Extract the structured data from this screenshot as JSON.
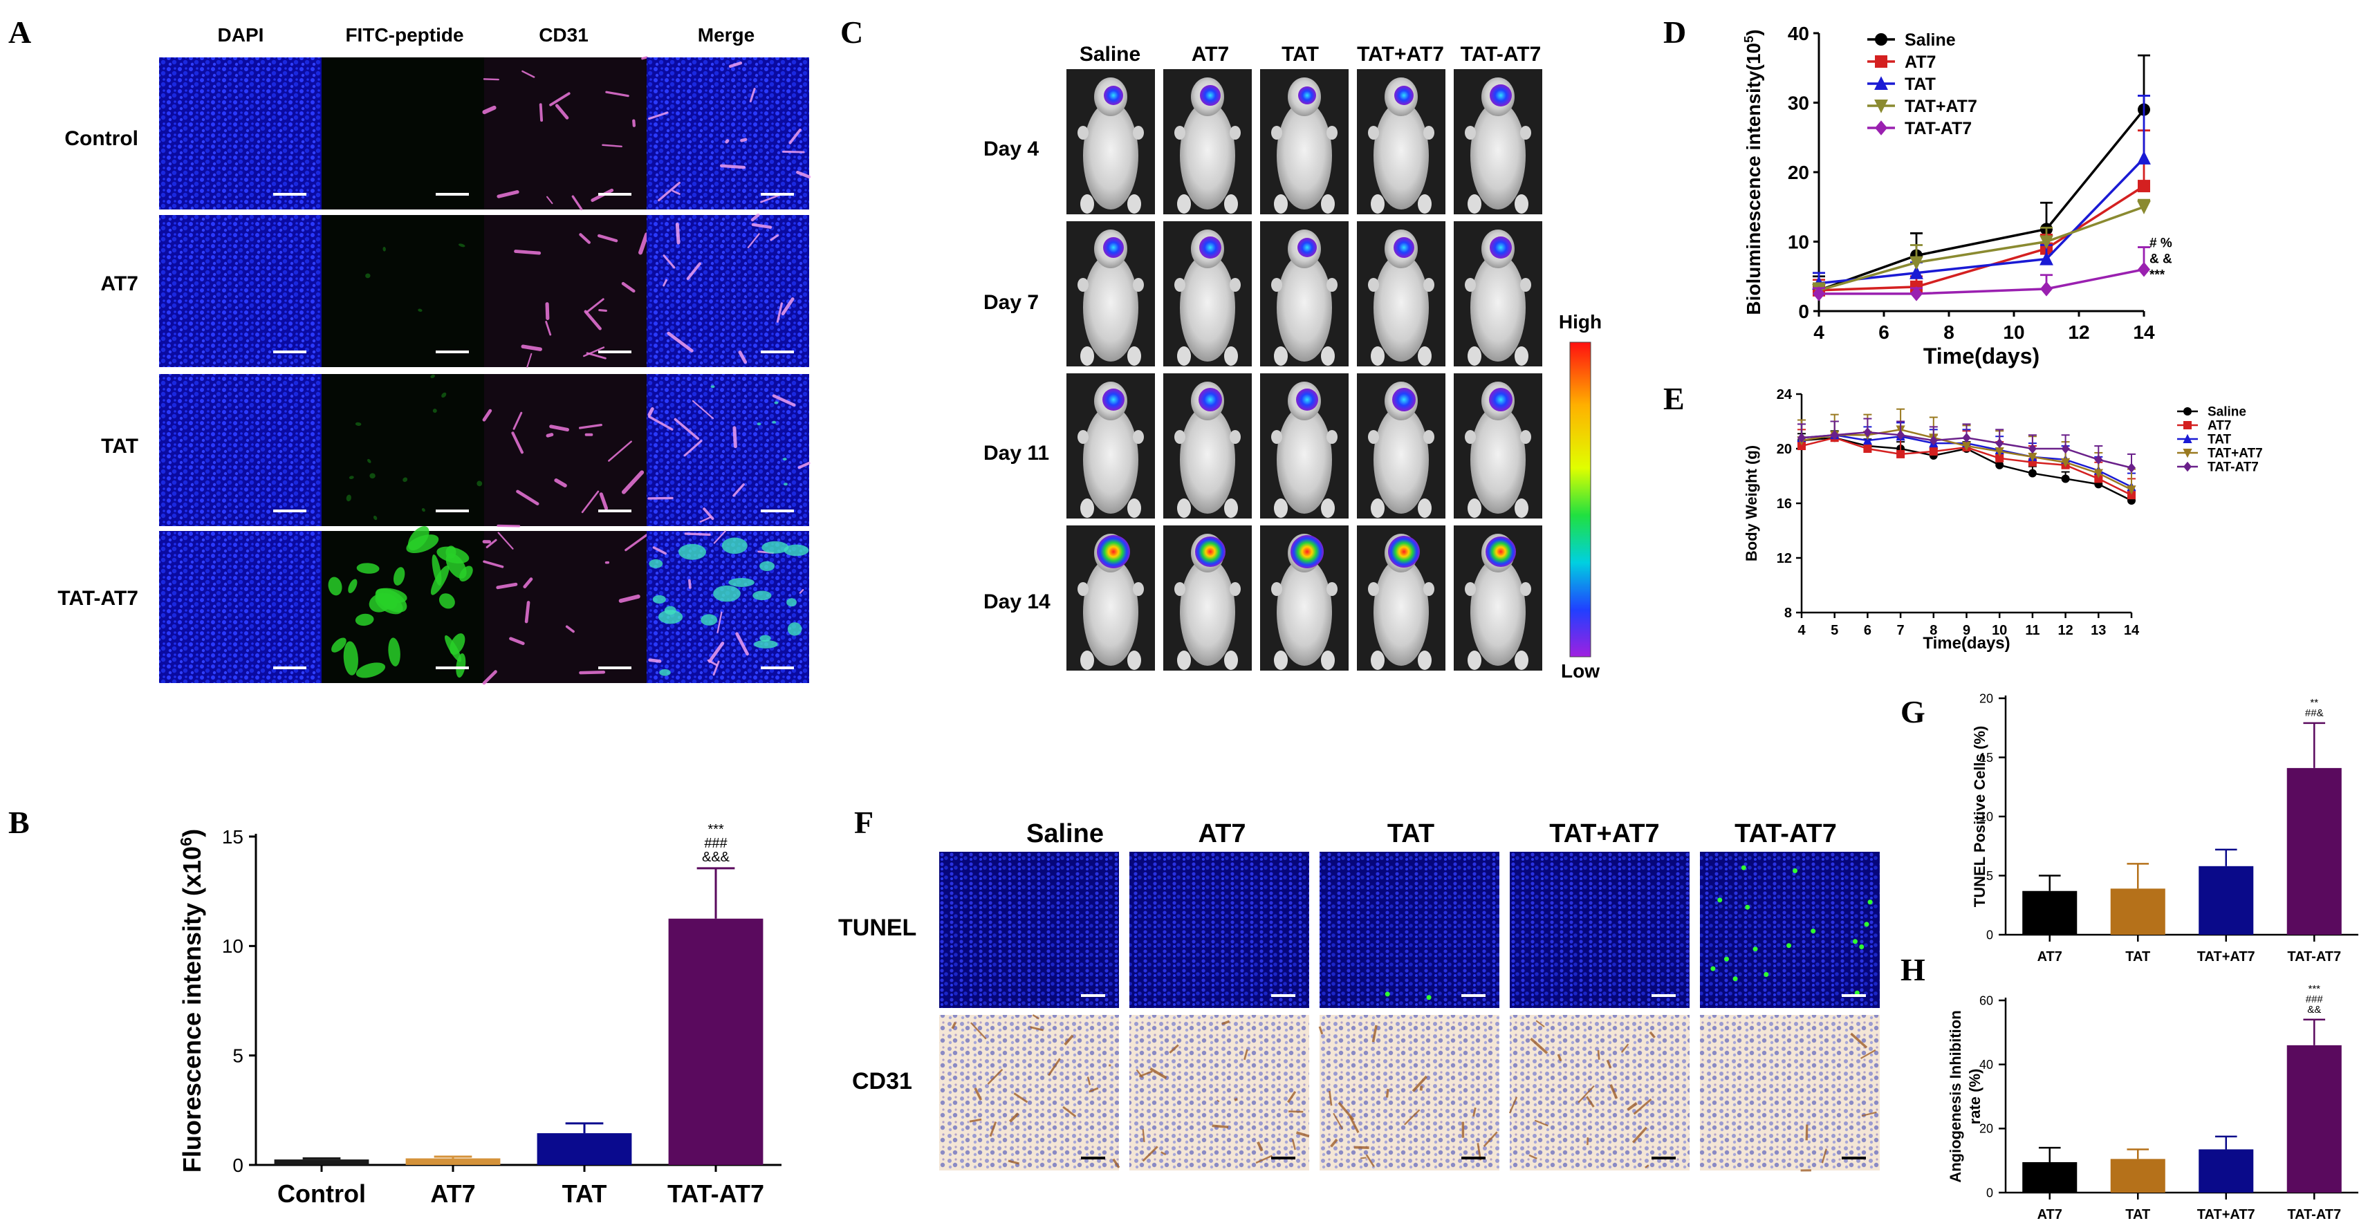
{
  "panel_letters": [
    "A",
    "B",
    "C",
    "D",
    "E",
    "F",
    "G",
    "H"
  ],
  "panel_a": {
    "col_headers": [
      "DAPI",
      "FITC-peptide",
      "CD31",
      "Merge"
    ],
    "row_labels": [
      "Control",
      "AT7",
      "TAT",
      "TAT-AT7"
    ]
  },
  "panel_c": {
    "col_headers": [
      "Saline",
      "AT7",
      "TAT",
      "TAT+AT7",
      "TAT-AT7"
    ],
    "row_labels": [
      "Day  4",
      "Day  7",
      "Day 11",
      "Day 14"
    ],
    "colorbar_high": "High",
    "colorbar_low": "Low"
  },
  "panel_f": {
    "col_headers": [
      "Saline",
      "AT7",
      "TAT",
      "TAT+AT7",
      "TAT-AT7"
    ],
    "row_labels": [
      "TUNEL",
      "CD31"
    ]
  },
  "chart_data": [
    {
      "id": "B",
      "type": "bar",
      "categories": [
        "Control",
        "AT7",
        "TAT",
        "TAT-AT7"
      ],
      "values": [
        0.25,
        0.3,
        1.45,
        11.25
      ],
      "errors": [
        0.05,
        0.08,
        0.45,
        2.3
      ],
      "colors": [
        "#1a1a1a",
        "#d4923a",
        "#0a0a8e",
        "#5a0a5e"
      ],
      "ylabel_main": "Fluorescence intensity (x10",
      "ylabel_sup": "6",
      "ylabel_end": ")",
      "ylim": [
        0,
        15
      ],
      "yticks": [
        "0",
        "5",
        "10",
        "15"
      ],
      "annotations": [
        "***",
        "###",
        "&&&"
      ]
    },
    {
      "id": "D",
      "type": "line",
      "x": [
        4,
        7,
        11,
        14
      ],
      "series": [
        {
          "name": "Saline",
          "color": "#000000",
          "marker": "circle",
          "values": [
            3.0,
            8.0,
            11.8,
            29.0
          ],
          "errors": [
            2.0,
            3.2,
            3.8,
            7.8
          ]
        },
        {
          "name": "AT7",
          "color": "#d42020",
          "marker": "square",
          "values": [
            3.0,
            3.5,
            9.0,
            18.0
          ],
          "errors": [
            1.5,
            1.5,
            2.0,
            8.0
          ]
        },
        {
          "name": "TAT",
          "color": "#1a1ad4",
          "marker": "triangle-up",
          "values": [
            4.0,
            5.5,
            7.5,
            22.0
          ],
          "errors": [
            1.5,
            1.5,
            2.0,
            9.0
          ]
        },
        {
          "name": "TAT+AT7",
          "color": "#8a8a30",
          "marker": "triangle-down",
          "values": [
            3.0,
            7.0,
            10.0,
            15.0
          ],
          "errors": [
            1.0,
            2.5,
            2.0,
            1.0
          ]
        },
        {
          "name": "TAT-AT7",
          "color": "#9a20b0",
          "marker": "diamond",
          "values": [
            2.5,
            2.5,
            3.2,
            6.0
          ],
          "errors": [
            0.8,
            0.8,
            2.0,
            3.2
          ]
        }
      ],
      "xlabel": "Time(days)",
      "ylabel_main": "Bioluminescence intensity(10",
      "ylabel_sup": "5",
      "ylabel_end": ")",
      "xlim": [
        4,
        14
      ],
      "ylim": [
        0,
        40
      ],
      "xticks": [
        "4",
        "6",
        "8",
        "10",
        "12",
        "14"
      ],
      "yticks": [
        "0",
        "10",
        "20",
        "30",
        "40"
      ],
      "annotations": [
        "# %",
        "& &",
        "***"
      ]
    },
    {
      "id": "E",
      "type": "line",
      "x": [
        4,
        5,
        6,
        7,
        8,
        9,
        10,
        11,
        12,
        13,
        14
      ],
      "series": [
        {
          "name": "Saline",
          "color": "#000000",
          "marker": "circle",
          "values": [
            20.6,
            20.8,
            20.2,
            20.0,
            19.5,
            20.0,
            18.8,
            18.2,
            17.8,
            17.4,
            16.2
          ],
          "errors": [
            0.5,
            0.5,
            0.5,
            0.5,
            0.5,
            0.5,
            0.5,
            0.5,
            0.5,
            0.5,
            0.5
          ]
        },
        {
          "name": "AT7",
          "color": "#d42020",
          "marker": "square",
          "values": [
            20.2,
            20.8,
            20.0,
            19.6,
            19.8,
            20.1,
            19.3,
            19.0,
            18.8,
            17.8,
            16.6
          ],
          "errors": [
            1.2,
            1.2,
            1.2,
            1.2,
            1.2,
            1.2,
            1.2,
            1.2,
            1.2,
            1.2,
            1.2
          ]
        },
        {
          "name": "TAT",
          "color": "#1a1ad4",
          "marker": "triangle-up",
          "values": [
            20.8,
            21.0,
            20.6,
            20.9,
            20.4,
            20.4,
            19.9,
            19.4,
            19.2,
            18.4,
            17.2
          ],
          "errors": [
            1.0,
            1.0,
            1.0,
            1.0,
            1.0,
            1.0,
            1.0,
            1.0,
            1.0,
            1.0,
            1.0
          ]
        },
        {
          "name": "TAT+AT7",
          "color": "#9a7a20",
          "marker": "triangle-down",
          "values": [
            20.6,
            21.0,
            21.0,
            21.4,
            20.8,
            20.2,
            19.8,
            19.4,
            19.0,
            18.2,
            17.0
          ],
          "errors": [
            1.5,
            1.5,
            1.5,
            1.5,
            1.5,
            1.5,
            1.5,
            1.5,
            1.5,
            1.5,
            1.5
          ]
        },
        {
          "name": "TAT-AT7",
          "color": "#6a208a",
          "marker": "diamond",
          "values": [
            20.8,
            21.0,
            21.2,
            21.0,
            20.6,
            20.8,
            20.4,
            20.0,
            20.0,
            19.2,
            18.6
          ],
          "errors": [
            1.0,
            1.0,
            1.0,
            1.0,
            1.0,
            1.0,
            1.0,
            1.0,
            1.0,
            1.0,
            1.0
          ]
        }
      ],
      "xlabel": "Time(days)",
      "ylabel": "Body Weight (g)",
      "xlim": [
        4,
        14
      ],
      "ylim": [
        8,
        24
      ],
      "xticks": [
        "4",
        "5",
        "6",
        "7",
        "8",
        "9",
        "10",
        "11",
        "12",
        "13",
        "14"
      ],
      "yticks": [
        "8",
        "12",
        "16",
        "20",
        "24"
      ]
    },
    {
      "id": "G",
      "type": "bar",
      "categories": [
        "AT7",
        "TAT",
        "TAT+AT7",
        "TAT-AT7"
      ],
      "values": [
        3.7,
        3.9,
        5.8,
        14.1
      ],
      "errors": [
        1.3,
        2.1,
        1.4,
        3.8
      ],
      "colors": [
        "#000000",
        "#b5711a",
        "#0a0a8a",
        "#5a0a5e"
      ],
      "ylabel": "TUNEL Positive Cells (%)",
      "ylim": [
        0,
        20
      ],
      "yticks": [
        "0",
        "5",
        "10",
        "15",
        "20"
      ],
      "annotations": [
        "**",
        "##&"
      ]
    },
    {
      "id": "H",
      "type": "bar",
      "categories": [
        "AT7",
        "TAT",
        "TAT+AT7",
        "TAT-AT7"
      ],
      "values": [
        9.5,
        10.5,
        13.5,
        46.0
      ],
      "errors": [
        4.5,
        3.0,
        4.0,
        8.0
      ],
      "colors": [
        "#000000",
        "#b5711a",
        "#0a0a8a",
        "#5a0a5e"
      ],
      "ylabel_lines": [
        "Angiogenesis Inhibition",
        "rate (%)"
      ],
      "ylim": [
        0,
        60
      ],
      "yticks": [
        "0",
        "20",
        "40",
        "60"
      ],
      "annotations": [
        "***",
        "###",
        "&&"
      ]
    }
  ]
}
